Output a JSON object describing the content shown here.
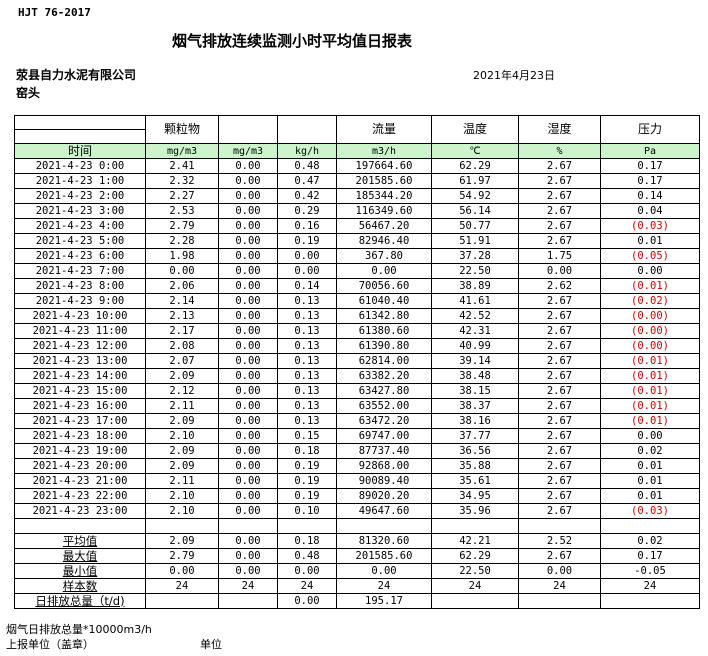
{
  "header": {
    "standard": "HJT  76-2017",
    "title": "烟气排放连续监测小时平均值日报表",
    "company": "荥县自力水泥有限公司",
    "site": "窑头",
    "date": "2021年4月23日"
  },
  "columns": {
    "row1": [
      "",
      "颗粒物",
      "",
      "",
      "流量",
      "温度",
      "湿度",
      "压力"
    ],
    "units": [
      "时间",
      "mg/m3",
      "mg/m3",
      "kg/h",
      "m3/h",
      "℃",
      "%",
      "Pa"
    ]
  },
  "colors": {
    "unit_row_bg": "#ccf5cc",
    "negative_text": "#d00000"
  },
  "rows": [
    [
      "2021-4-23 0:00",
      "2.41",
      "0.00",
      "0.48",
      "197664.60",
      "62.29",
      "2.67",
      "0.17"
    ],
    [
      "2021-4-23 1:00",
      "2.32",
      "0.00",
      "0.47",
      "201585.60",
      "61.97",
      "2.67",
      "0.17"
    ],
    [
      "2021-4-23 2:00",
      "2.27",
      "0.00",
      "0.42",
      "185344.20",
      "54.92",
      "2.67",
      "0.14"
    ],
    [
      "2021-4-23 3:00",
      "2.53",
      "0.00",
      "0.29",
      "116349.60",
      "56.14",
      "2.67",
      "0.04"
    ],
    [
      "2021-4-23 4:00",
      "2.79",
      "0.00",
      "0.16",
      "56467.20",
      "50.77",
      "2.67",
      "(0.03)"
    ],
    [
      "2021-4-23 5:00",
      "2.28",
      "0.00",
      "0.19",
      "82946.40",
      "51.91",
      "2.67",
      "0.01"
    ],
    [
      "2021-4-23 6:00",
      "1.98",
      "0.00",
      "0.00",
      "367.80",
      "37.28",
      "1.75",
      "(0.05)"
    ],
    [
      "2021-4-23 7:00",
      "0.00",
      "0.00",
      "0.00",
      "0.00",
      "22.50",
      "0.00",
      "0.00"
    ],
    [
      "2021-4-23 8:00",
      "2.06",
      "0.00",
      "0.14",
      "70056.60",
      "38.89",
      "2.62",
      "(0.01)"
    ],
    [
      "2021-4-23 9:00",
      "2.14",
      "0.00",
      "0.13",
      "61040.40",
      "41.61",
      "2.67",
      "(0.02)"
    ],
    [
      "2021-4-23 10:00",
      "2.13",
      "0.00",
      "0.13",
      "61342.80",
      "42.52",
      "2.67",
      "(0.00)"
    ],
    [
      "2021-4-23 11:00",
      "2.17",
      "0.00",
      "0.13",
      "61380.60",
      "42.31",
      "2.67",
      "(0.00)"
    ],
    [
      "2021-4-23 12:00",
      "2.08",
      "0.00",
      "0.13",
      "61390.80",
      "40.99",
      "2.67",
      "(0.00)"
    ],
    [
      "2021-4-23 13:00",
      "2.07",
      "0.00",
      "0.13",
      "62814.00",
      "39.14",
      "2.67",
      "(0.01)"
    ],
    [
      "2021-4-23 14:00",
      "2.09",
      "0.00",
      "0.13",
      "63382.20",
      "38.48",
      "2.67",
      "(0.01)"
    ],
    [
      "2021-4-23 15:00",
      "2.12",
      "0.00",
      "0.13",
      "63427.80",
      "38.15",
      "2.67",
      "(0.01)"
    ],
    [
      "2021-4-23 16:00",
      "2.11",
      "0.00",
      "0.13",
      "63552.00",
      "38.37",
      "2.67",
      "(0.01)"
    ],
    [
      "2021-4-23 17:00",
      "2.09",
      "0.00",
      "0.13",
      "63472.20",
      "38.16",
      "2.67",
      "(0.01)"
    ],
    [
      "2021-4-23 18:00",
      "2.10",
      "0.00",
      "0.15",
      "69747.00",
      "37.77",
      "2.67",
      "0.00"
    ],
    [
      "2021-4-23 19:00",
      "2.09",
      "0.00",
      "0.18",
      "87737.40",
      "36.56",
      "2.67",
      "0.02"
    ],
    [
      "2021-4-23 20:00",
      "2.09",
      "0.00",
      "0.19",
      "92868.00",
      "35.88",
      "2.67",
      "0.01"
    ],
    [
      "2021-4-23 21:00",
      "2.11",
      "0.00",
      "0.19",
      "90089.40",
      "35.61",
      "2.67",
      "0.01"
    ],
    [
      "2021-4-23 22:00",
      "2.10",
      "0.00",
      "0.19",
      "89020.20",
      "34.95",
      "2.67",
      "0.01"
    ],
    [
      "2021-4-23 23:00",
      "2.10",
      "0.00",
      "0.10",
      "49647.60",
      "35.96",
      "2.67",
      "(0.03)"
    ]
  ],
  "stats": [
    [
      "平均值",
      "2.09",
      "0.00",
      "0.18",
      "81320.60",
      "42.21",
      "2.52",
      "0.02"
    ],
    [
      "最大值",
      "2.79",
      "0.00",
      "0.48",
      "201585.60",
      "62.29",
      "2.67",
      "0.17"
    ],
    [
      "最小值",
      "0.00",
      "0.00",
      "0.00",
      "0.00",
      "22.50",
      "0.00",
      "-0.05"
    ],
    [
      "样本数",
      "24",
      "24",
      "24",
      "24",
      "24",
      "24",
      "24"
    ],
    [
      "日排放总量（t/d)",
      "",
      "",
      "0.00",
      "195.17",
      "",
      "",
      ""
    ]
  ],
  "footer": {
    "note": "烟气日排放总量*10000m3/h",
    "report_unit": "上报单位（盖章）",
    "unit": "单位"
  }
}
